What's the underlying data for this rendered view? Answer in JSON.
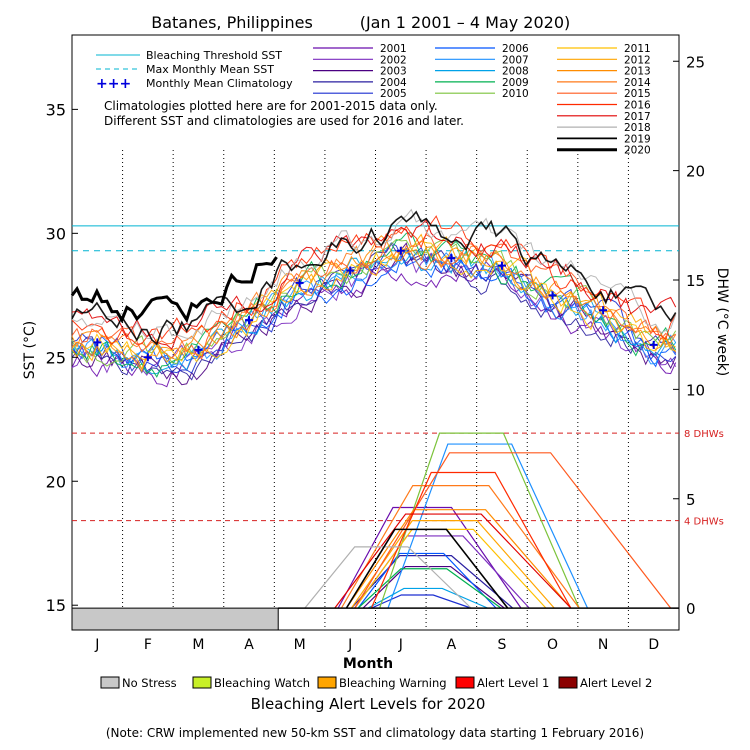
{
  "chart_data": {
    "type": "line",
    "title": "Batanes, Philippines",
    "date_range": "(Jan 1 2001 – 4 May 2020)",
    "xlabel": "Month",
    "ylabel_left": "SST (°C)",
    "ylabel_right": "DHW (°C week)",
    "months": [
      "J",
      "F",
      "M",
      "A",
      "M",
      "J",
      "J",
      "A",
      "S",
      "O",
      "N",
      "D"
    ],
    "ylim_sst": [
      14,
      38
    ],
    "yticks_sst": [
      15,
      20,
      25,
      30,
      35
    ],
    "ylim_dhw": [
      -1,
      26.2
    ],
    "yticks_dhw": [
      0,
      5,
      10,
      15,
      20,
      25
    ],
    "bleaching_threshold_sst": 30.3,
    "max_monthly_mean_sst": 29.3,
    "dhw_thresholds": [
      {
        "value": 4,
        "label": "4 DHWs"
      },
      {
        "value": 8,
        "label": "8 DHWs"
      }
    ],
    "monthly_mean_climatology": [
      {
        "month": 1,
        "value": 25.6
      },
      {
        "month": 2,
        "value": 25.0
      },
      {
        "month": 3,
        "value": 25.3
      },
      {
        "month": 4,
        "value": 26.5
      },
      {
        "month": 5,
        "value": 28.0
      },
      {
        "month": 6,
        "value": 28.5
      },
      {
        "month": 7,
        "value": 29.3
      },
      {
        "month": 8,
        "value": 29.0
      },
      {
        "month": 9,
        "value": 28.7
      },
      {
        "month": 10,
        "value": 27.5
      },
      {
        "month": 11,
        "value": 26.9
      },
      {
        "month": 12,
        "value": 25.5
      }
    ],
    "legend_reference": [
      {
        "label": "Bleaching Threshold SST",
        "color": "#00b4d2",
        "style": "solid"
      },
      {
        "label": "Max Monthly Mean SST",
        "color": "#00b4d2",
        "style": "dashed"
      },
      {
        "label": "Monthly Mean Climatology",
        "color": "#0000dd",
        "style": "plus",
        "symbol": "+++"
      }
    ],
    "notes": [
      "Climatologies plotted here are for 2001-2015 data only.",
      "Different SST and climatologies are used for 2016 and later."
    ],
    "series": [
      {
        "name": "2001",
        "color": "#6a0dad",
        "peak_dhw": 4.6,
        "dhw_start_day": 160,
        "dhw_end_day": 270
      },
      {
        "name": "2002",
        "color": "#7b2cbf",
        "peak_dhw": 3.3,
        "dhw_start_day": 170,
        "dhw_end_day": 275
      },
      {
        "name": "2003",
        "color": "#4b0082",
        "peak_dhw": 1.9,
        "dhw_start_day": 175,
        "dhw_end_day": 260
      },
      {
        "name": "2004",
        "color": "#2a1fa0",
        "peak_dhw": 2.4,
        "dhw_start_day": 168,
        "dhw_end_day": 265
      },
      {
        "name": "2005",
        "color": "#1c2fd0",
        "peak_dhw": 0.6,
        "dhw_start_day": 180,
        "dhw_end_day": 240
      },
      {
        "name": "2006",
        "color": "#0055ff",
        "peak_dhw": 2.5,
        "dhw_start_day": 172,
        "dhw_end_day": 255
      },
      {
        "name": "2007",
        "color": "#1e90ff",
        "peak_dhw": 7.5,
        "dhw_start_day": 190,
        "dhw_end_day": 310
      },
      {
        "name": "2008",
        "color": "#00a2e8",
        "peak_dhw": 0.9,
        "dhw_start_day": 178,
        "dhw_end_day": 250
      },
      {
        "name": "2009",
        "color": "#00b050",
        "peak_dhw": 1.8,
        "dhw_start_day": 172,
        "dhw_end_day": 258
      },
      {
        "name": "2010",
        "color": "#7cc33b",
        "peak_dhw": 8.0,
        "dhw_start_day": 185,
        "dhw_end_day": 305
      },
      {
        "name": "2011",
        "color": "#ffc000",
        "peak_dhw": 3.6,
        "dhw_start_day": 170,
        "dhw_end_day": 285
      },
      {
        "name": "2012",
        "color": "#ffa500",
        "peak_dhw": 4.0,
        "dhw_start_day": 168,
        "dhw_end_day": 290
      },
      {
        "name": "2013",
        "color": "#ff8c00",
        "peak_dhw": 4.5,
        "dhw_start_day": 165,
        "dhw_end_day": 300
      },
      {
        "name": "2014",
        "color": "#ff7a1a",
        "peak_dhw": 5.6,
        "dhw_start_day": 162,
        "dhw_end_day": 305
      },
      {
        "name": "2015",
        "color": "#ff5a1f",
        "peak_dhw": 7.1,
        "dhw_start_day": 170,
        "dhw_end_day": 360
      },
      {
        "name": "2016",
        "color": "#ff2a00",
        "peak_dhw": 6.2,
        "dhw_start_day": 180,
        "dhw_end_day": 300
      },
      {
        "name": "2017",
        "color": "#e00000",
        "peak_dhw": 4.3,
        "dhw_start_day": 158,
        "dhw_end_day": 300
      },
      {
        "name": "2018",
        "color": "#b0b0b0",
        "peak_dhw": 2.8,
        "dhw_start_day": 140,
        "dhw_end_day": 240
      },
      {
        "name": "2019",
        "color": "#000000",
        "peak_dhw": 3.6,
        "dhw_start_day": 165,
        "dhw_end_day": 262
      },
      {
        "name": "2020",
        "color": "#000000",
        "peak_dhw": 0.0,
        "dhw_start_day": 0,
        "dhw_end_day": 0
      }
    ],
    "alert_2020": {
      "status": "No Stress",
      "start_day": 0,
      "end_day": 124
    }
  },
  "alert_legend": {
    "items": [
      {
        "label": "No Stress",
        "color": "#c8c8c8"
      },
      {
        "label": "Bleaching Watch",
        "color": "#c8f028"
      },
      {
        "label": "Bleaching Warning",
        "color": "#ffa500"
      },
      {
        "label": "Alert Level 1",
        "color": "#ff0000"
      },
      {
        "label": "Alert Level 2",
        "color": "#8b0000"
      }
    ],
    "title": "Bleaching Alert Levels for 2020"
  },
  "footnote": "(Note: CRW implemented new 50-km SST and climatology data starting 1 February 2016)",
  "colors": {
    "threshold": "#00b4d2",
    "climatology": "#0000dd",
    "dhw_line": "#d62020"
  }
}
